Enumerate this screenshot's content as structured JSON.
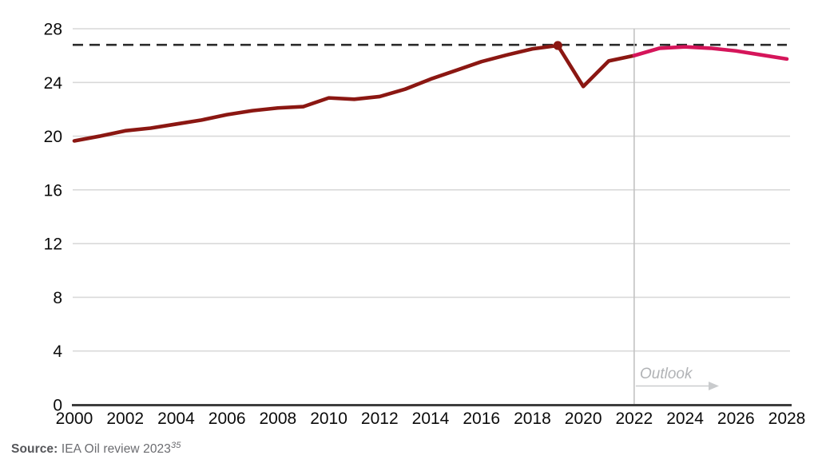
{
  "chart_data": {
    "type": "line",
    "title": "",
    "xlabel": "",
    "ylabel": "",
    "x_range": [
      2000,
      2028
    ],
    "xtick_step": 2,
    "ylim": [
      0,
      28
    ],
    "ytick_step": 4,
    "grid": "horizontal-only",
    "legend": "none",
    "series": [
      {
        "name": "historical",
        "color": "#8b1712",
        "x": [
          2000,
          2001,
          2002,
          2003,
          2004,
          2005,
          2006,
          2007,
          2008,
          2009,
          2010,
          2011,
          2012,
          2013,
          2014,
          2015,
          2016,
          2017,
          2018,
          2019,
          2020,
          2021,
          2022
        ],
        "values": [
          19.65,
          20.0,
          20.4,
          20.6,
          20.9,
          21.2,
          21.6,
          21.9,
          22.1,
          22.2,
          22.85,
          22.75,
          22.95,
          23.5,
          24.25,
          24.9,
          25.55,
          26.05,
          26.5,
          26.75,
          23.7,
          25.6,
          26.0
        ]
      },
      {
        "name": "outlook-forecast",
        "color": "#d5155a",
        "x": [
          2022,
          2023,
          2024,
          2025,
          2026,
          2027,
          2028
        ],
        "values": [
          26.0,
          26.55,
          26.65,
          26.55,
          26.35,
          26.05,
          25.75
        ]
      }
    ],
    "marker_point": {
      "x": 2019,
      "y": 26.75,
      "color": "#8b1712"
    },
    "reference_line": {
      "y": 26.8,
      "style": "dashed",
      "color": "#2a2a2a"
    },
    "outlook_divider": {
      "x": 2022,
      "color": "#c2c2c2"
    },
    "annotations": {
      "outlook_label": "Outlook"
    },
    "colors": {
      "gridline": "#d9d9d9",
      "axis": "#3d3d3d",
      "tick_text": "#0b0b0b",
      "outlook_text": "#b1b3b6",
      "outlook_arrow": "#c9cbcd"
    }
  },
  "source": {
    "label": "Source:",
    "text": " IEA Oil review 2023",
    "footnote": "35"
  }
}
